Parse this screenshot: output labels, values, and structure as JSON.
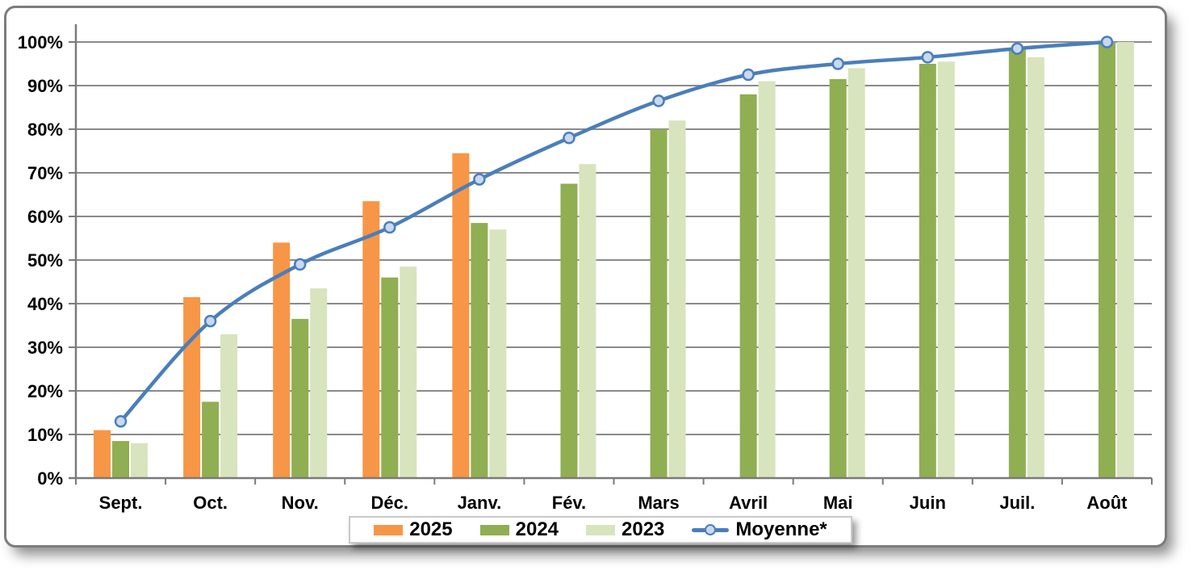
{
  "chart_data": {
    "type": "bar+line combo",
    "title": "",
    "categories": [
      "Sept.",
      "Oct.",
      "Nov.",
      "Déc.",
      "Janv.",
      "Fév.",
      "Mars",
      "Avril",
      "Mai",
      "Juin",
      "Juil.",
      "Août"
    ],
    "series": [
      {
        "name": "2025",
        "type": "bar",
        "color": "#F79646",
        "values": [
          11,
          41.5,
          54,
          63.5,
          74.5,
          null,
          null,
          null,
          null,
          null,
          null,
          null
        ]
      },
      {
        "name": "2024",
        "type": "bar",
        "color": "#90AE52",
        "values": [
          8.5,
          17.5,
          36.5,
          46,
          58.5,
          67.5,
          80,
          88,
          91.5,
          95,
          98.5,
          100
        ]
      },
      {
        "name": "2023",
        "type": "bar",
        "color": "#D8E4BD",
        "values": [
          8,
          33,
          43.5,
          48.5,
          57,
          72,
          82,
          91,
          94,
          95.5,
          96.5,
          100
        ]
      },
      {
        "name": "Moyenne*",
        "type": "line",
        "color": "#4A7EBB",
        "marker_fill": "#C9D9F0",
        "values": [
          13,
          36,
          49,
          57.5,
          68.5,
          78,
          86.5,
          92.5,
          95,
          96.5,
          98.5,
          100
        ]
      }
    ],
    "ylim": [
      0,
      100
    ],
    "ytick_step": 10,
    "ytick_labels": [
      "0%",
      "10%",
      "20%",
      "30%",
      "40%",
      "50%",
      "60%",
      "70%",
      "80%",
      "90%",
      "100%"
    ],
    "ytick_format": "percent",
    "grid": true,
    "legend_position": "bottom",
    "colors": {
      "gridline": "#8a8a8a",
      "axis": "#7a7a7a",
      "text": "#000000"
    }
  }
}
